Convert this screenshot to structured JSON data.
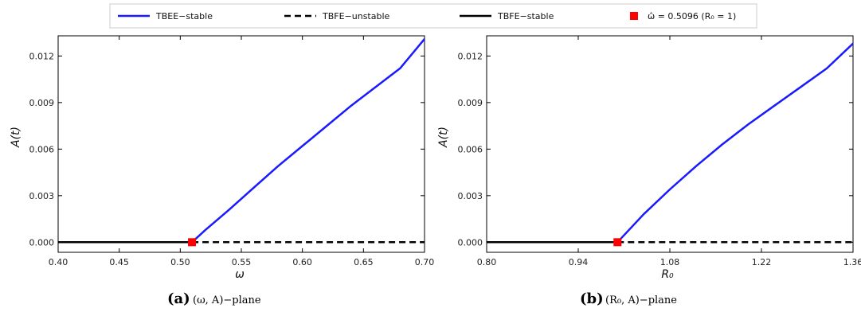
{
  "legend": [
    {
      "label": "TBEE−stable",
      "color": "#1a1aff",
      "dash": "solid"
    },
    {
      "label": "TBFE−unstable",
      "color": "#000000",
      "dash": "dashed"
    },
    {
      "label": "TBFE−stable",
      "color": "#000000",
      "dash": "solid"
    },
    {
      "label": "ω̂ = 0.5096 (R₀ = 1)",
      "color": "#ff0000",
      "marker": "square"
    }
  ],
  "chart_data": [
    {
      "type": "line",
      "panel_letter": "(a)",
      "caption": "(ω, A)−plane",
      "xlabel": "ω",
      "ylabel": "A(t)",
      "xlim": [
        0.4,
        0.7
      ],
      "ylim": [
        -0.00065,
        0.0133
      ],
      "xticks": [
        "0.40",
        "0.45",
        "0.50",
        "0.55",
        "0.60",
        "0.65",
        "0.70"
      ],
      "yticks": [
        "0.000",
        "0.003",
        "0.006",
        "0.009",
        "0.012"
      ],
      "series": [
        {
          "name": "TBFE−stable",
          "x": [
            0.4,
            0.5096
          ],
          "y": [
            0.0,
            0.0
          ]
        },
        {
          "name": "TBFE−unstable",
          "x": [
            0.5096,
            0.7
          ],
          "y": [
            0.0,
            0.0
          ]
        },
        {
          "name": "TBEE−stable",
          "x": [
            0.5096,
            0.52,
            0.54,
            0.56,
            0.58,
            0.6,
            0.62,
            0.64,
            0.66,
            0.68,
            0.7
          ],
          "y": [
            0.0,
            0.00075,
            0.0021,
            0.0035,
            0.0049,
            0.0062,
            0.0075,
            0.0088,
            0.01,
            0.0112,
            0.0131
          ]
        }
      ],
      "marker": {
        "name": "ω̂ = 0.5096 (R₀ = 1)",
        "x": 0.5096,
        "y": 0.0
      }
    },
    {
      "type": "line",
      "panel_letter": "(b)",
      "caption": "(R₀, A)−plane",
      "xlabel": "R₀",
      "ylabel": "A(t)",
      "xlim": [
        0.8,
        1.36
      ],
      "ylim": [
        -0.00065,
        0.0133
      ],
      "xticks": [
        "0.80",
        "0.94",
        "1.08",
        "1.22",
        "1.36"
      ],
      "yticks": [
        "0.000",
        "0.003",
        "0.006",
        "0.009",
        "0.012"
      ],
      "series": [
        {
          "name": "TBFE−stable",
          "x": [
            0.8,
            1.0
          ],
          "y": [
            0.0,
            0.0
          ]
        },
        {
          "name": "TBFE−unstable",
          "x": [
            1.0,
            1.36
          ],
          "y": [
            0.0,
            0.0
          ]
        },
        {
          "name": "TBEE−stable",
          "x": [
            1.0,
            1.04,
            1.08,
            1.12,
            1.16,
            1.2,
            1.24,
            1.28,
            1.32,
            1.36
          ],
          "y": [
            0.0,
            0.0018,
            0.0034,
            0.0049,
            0.0063,
            0.0076,
            0.0088,
            0.01,
            0.0112,
            0.0128
          ]
        }
      ],
      "marker": {
        "name": "ω̂ = 0.5096 (R₀ = 1)",
        "x": 1.0,
        "y": 0.0
      }
    }
  ]
}
